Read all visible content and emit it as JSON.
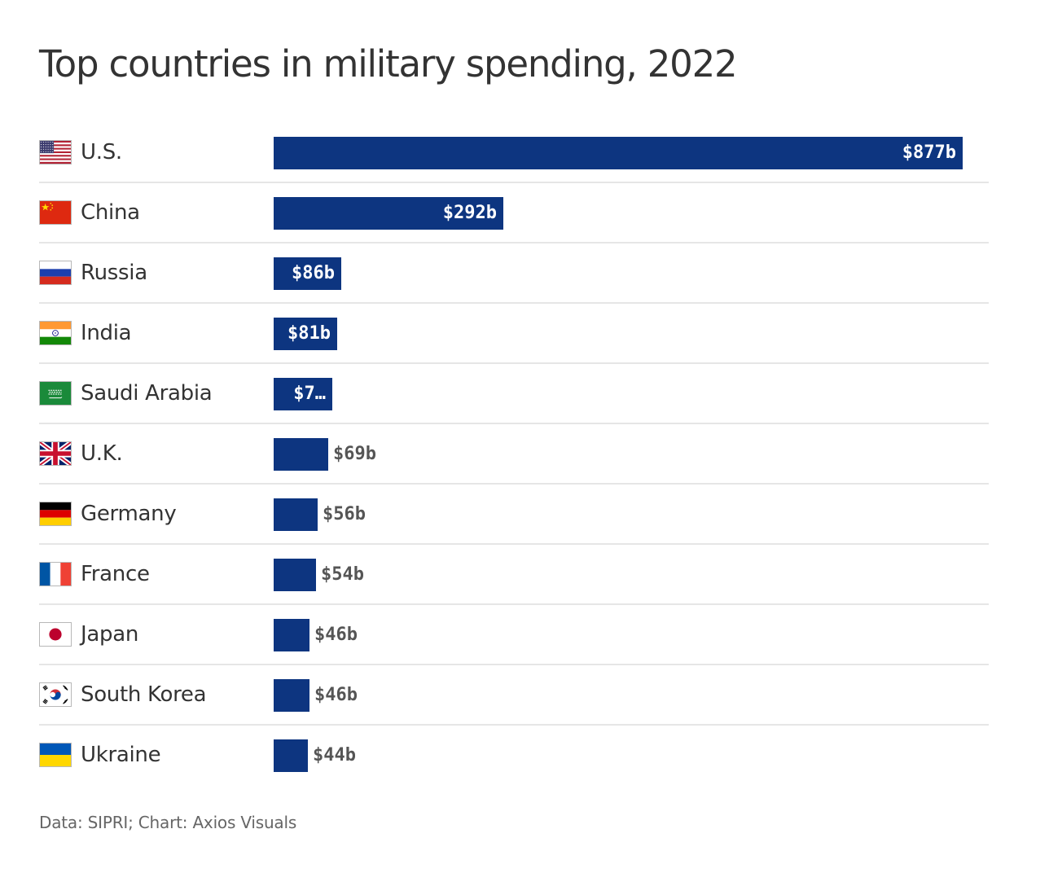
{
  "title": "Top countries in military spending, 2022",
  "source": "Data: SIPRI; Chart: Axios Visuals",
  "colors": {
    "bar": "#0d3580",
    "label_inside": "#ffffff",
    "label_outside": "#555555",
    "divider": "#e6e6e6"
  },
  "chart_data": {
    "type": "bar",
    "orientation": "horizontal",
    "title": "Top countries in military spending, 2022",
    "unit": "billion USD",
    "categories": [
      "U.S.",
      "China",
      "Russia",
      "India",
      "Saudi Arabia",
      "U.K.",
      "Germany",
      "France",
      "Japan",
      "South Korea",
      "Ukraine"
    ],
    "values": [
      877,
      292,
      86,
      81,
      75,
      69,
      56,
      54,
      46,
      46,
      44
    ],
    "labels": [
      "$877b",
      "$292b",
      "$86b",
      "$81b",
      "$7…",
      "$69b",
      "$56b",
      "$54b",
      "$46b",
      "$46b",
      "$44b"
    ],
    "flags": [
      "us-flag-icon",
      "china-flag-icon",
      "russia-flag-icon",
      "india-flag-icon",
      "saudi-arabia-flag-icon",
      "uk-flag-icon",
      "germany-flag-icon",
      "france-flag-icon",
      "japan-flag-icon",
      "south-korea-flag-icon",
      "ukraine-flag-icon"
    ],
    "xlim": [
      0,
      877
    ],
    "grid": false
  }
}
